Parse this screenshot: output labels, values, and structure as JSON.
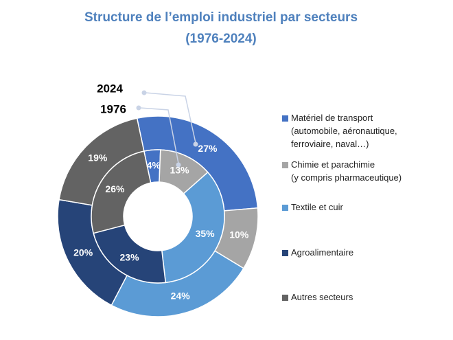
{
  "chart_data": {
    "type": "donut",
    "title": "Structure de l’emploi industriel par secteurs",
    "subtitle": "(1976-2024)",
    "categories": [
      "Matériel de transport\n(automobile, aéronautique,\nferroviaire, naval…)",
      "Chimie et parachimie\n(y compris pharmaceutique)",
      "Textile et cuir",
      "Agroalimentaire",
      "Autres secteurs"
    ],
    "colors": [
      "#4472c4",
      "#a5a5a5",
      "#5b9bd5",
      "#264478",
      "#636363"
    ],
    "series": [
      {
        "name": "2024",
        "values": [
          27,
          10,
          24,
          20,
          19
        ],
        "value_labels": [
          "27%",
          "10%",
          "24%",
          "20%",
          "19%"
        ]
      },
      {
        "name": "1976",
        "values": [
          4,
          13,
          35,
          23,
          26
        ],
        "value_labels": [
          "4%",
          "13%",
          "35%",
          "23%",
          "26%"
        ]
      }
    ]
  }
}
